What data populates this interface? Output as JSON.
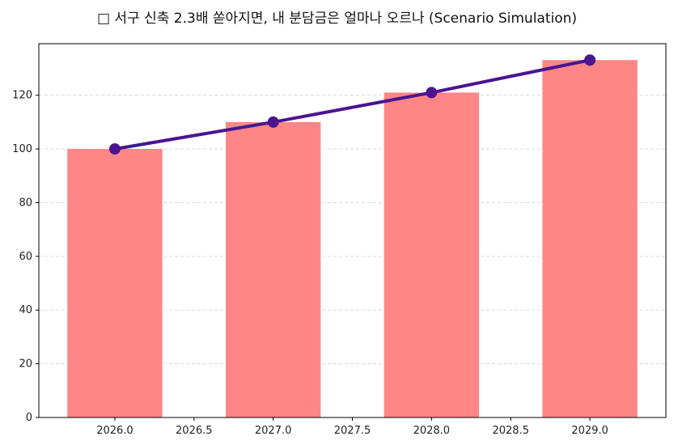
{
  "chart_data": {
    "type": "bar",
    "title": "□ 서구 신축 2.3배 쏟아지면, 내 분담금은 얼마나 오르나 (Scenario Simulation)",
    "x": [
      2026,
      2027,
      2028,
      2029
    ],
    "values": [
      100,
      110,
      121,
      133.1
    ],
    "line_values": [
      100,
      110,
      121,
      133.1
    ],
    "xlim": [
      2025.52,
      2029.48
    ],
    "ylim": [
      0,
      139.2
    ],
    "xticks": [
      "2026.0",
      "2026.5",
      "2027.0",
      "2027.5",
      "2028.0",
      "2028.5",
      "2029.0"
    ],
    "yticks": [
      "0",
      "20",
      "40",
      "60",
      "80",
      "100",
      "120"
    ],
    "grid": "y-dashed",
    "bar_color": "#ff8686",
    "line_color": "#4a1590"
  }
}
